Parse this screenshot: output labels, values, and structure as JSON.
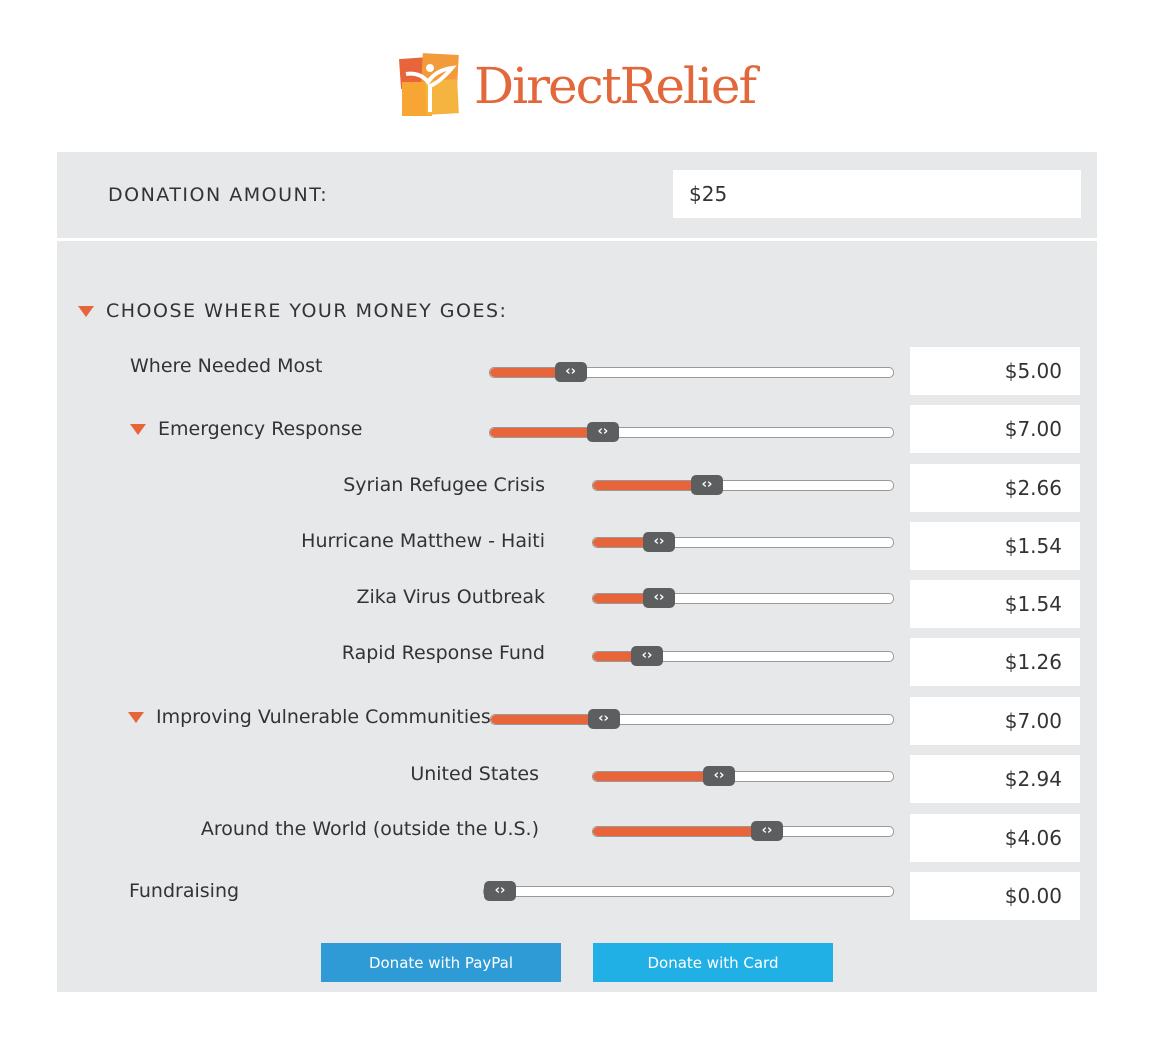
{
  "brand": {
    "name": "DirectRelief",
    "colors": {
      "accent": "#e8643a",
      "paypal": "#2e9bd6",
      "card": "#21b0e6"
    }
  },
  "donation": {
    "label": "DONATION AMOUNT:",
    "value": "$25"
  },
  "allocation": {
    "heading": "CHOOSE WHERE YOUR MONEY GOES:",
    "rows": [
      {
        "label": "Where Needed Most",
        "value": "$5.00",
        "slider_percent": 20,
        "level": 0
      },
      {
        "label": "Emergency Response",
        "value": "$7.00",
        "slider_percent": 28,
        "level": 0,
        "expandable": true
      },
      {
        "label": "Syrian Refugee Crisis",
        "value": "$2.66",
        "slider_percent": 38,
        "level": 1
      },
      {
        "label": "Hurricane Matthew - Haiti",
        "value": "$1.54",
        "slider_percent": 22,
        "level": 1
      },
      {
        "label": "Zika Virus Outbreak",
        "value": "$1.54",
        "slider_percent": 22,
        "level": 1
      },
      {
        "label": "Rapid Response Fund",
        "value": "$1.26",
        "slider_percent": 18,
        "level": 1
      },
      {
        "label": "Improving Vulnerable Communities",
        "value": "$7.00",
        "slider_percent": 28,
        "level": 0,
        "expandable": true
      },
      {
        "label": "United States",
        "value": "$2.94",
        "slider_percent": 42,
        "level": 1
      },
      {
        "label": "Around the World (outside the U.S.)",
        "value": "$4.06",
        "slider_percent": 58,
        "level": 1
      },
      {
        "label": "Fundraising",
        "value": "$0.00",
        "slider_percent": 0,
        "level": 0
      }
    ]
  },
  "buttons": {
    "paypal": "Donate with PayPal",
    "card": "Donate with Card"
  }
}
